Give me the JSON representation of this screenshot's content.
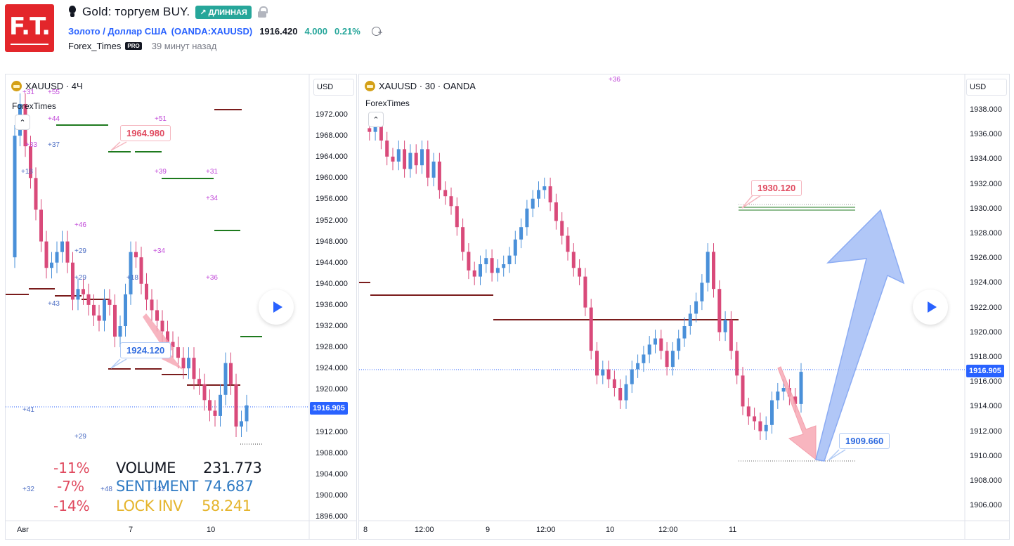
{
  "header": {
    "logo_text": "F.T.",
    "idea_title": "Gold: торгуем BUY.",
    "position_badge": "↗ ДЛИННАЯ",
    "symbol_name": "Золото / Доллар США",
    "symbol_code": "OANDA:XAUUSD",
    "price": "1916.420",
    "change": "4.000",
    "change_pct": "0.21%",
    "author": "Forex_Times",
    "author_badge": "PRO",
    "time_ago": "39 минут назад"
  },
  "left_chart": {
    "title": "XAUUSD · 4Ч",
    "watermark": "ForexTimes",
    "currency": "USD",
    "collapse_glyph": "⌃",
    "current_price": "1916.905",
    "y_ticks": [
      "1972.000",
      "1968.000",
      "1964.000",
      "1960.000",
      "1956.000",
      "1952.000",
      "1948.000",
      "1944.000",
      "1940.000",
      "1936.000",
      "1932.000",
      "1928.000",
      "1924.000",
      "1920.000",
      "1912.000",
      "1908.000",
      "1904.000",
      "1900.000",
      "1896.000"
    ],
    "x_ticks": [
      "Авг",
      "7",
      "10"
    ],
    "callouts": {
      "upper": "1964.980",
      "lower": "1924.120"
    },
    "markers": [
      "+31",
      "+55",
      "+44",
      "+51",
      "+37",
      "+33",
      "+39",
      "+31",
      "+18",
      "+34",
      "+46",
      "+29",
      "+34",
      "+29",
      "+18",
      "+36",
      "+43",
      "+41",
      "+29",
      "+32",
      "+48",
      "+32"
    ],
    "stats": {
      "volume_pct": "-11%",
      "volume_label": "VOLUME",
      "volume_value": "231.773",
      "sentiment_pct": "-7%",
      "sentiment_label": "SENTIMENT",
      "sentiment_value": "74.687",
      "lock_pct": "-14%",
      "lock_label": "LOCK INV",
      "lock_value": "58.241"
    }
  },
  "right_chart": {
    "title": "XAUUSD · 30 · OANDA",
    "watermark": "ForexTimes",
    "currency": "USD",
    "collapse_glyph": "⌃",
    "top_marker": "+36",
    "current_price": "1916.905",
    "y_ticks": [
      "1938.000",
      "1936.000",
      "1934.000",
      "1932.000",
      "1930.000",
      "1928.000",
      "1926.000",
      "1924.000",
      "1922.000",
      "1920.000",
      "1918.000",
      "1916.000",
      "1914.000",
      "1912.000",
      "1910.000",
      "1908.000",
      "1906.000"
    ],
    "x_ticks": [
      "8",
      "12:00",
      "9",
      "12:00",
      "10",
      "12:00",
      "11"
    ],
    "callouts": {
      "upper": "1930.120",
      "lower": "1909.660"
    }
  },
  "colors": {
    "bull": "#4a90d9",
    "bear": "#d94a7a",
    "level_dark": "#7a1c1c",
    "level_green": "#1e7a1e",
    "accent": "#2962ff",
    "badge_green": "#26a69a"
  }
}
